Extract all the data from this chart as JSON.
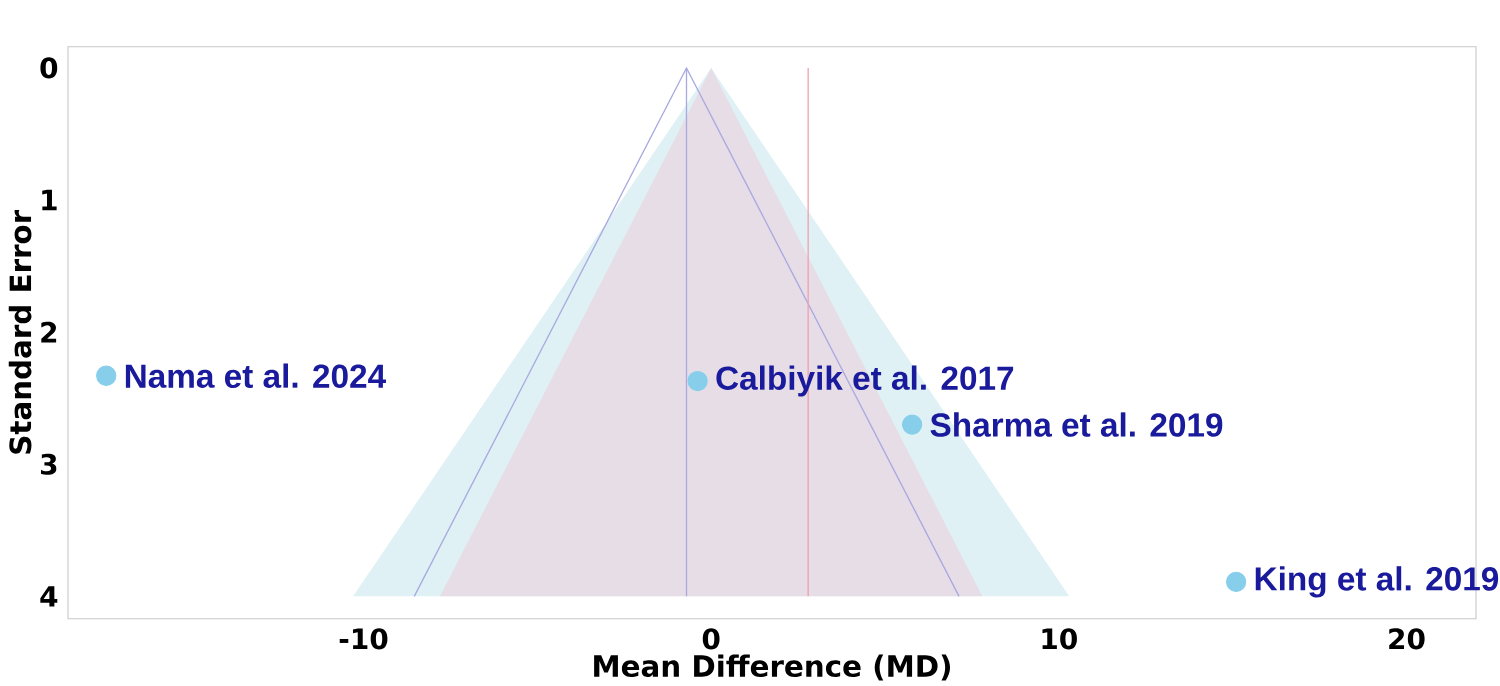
{
  "chart_data": {
    "type": "scatter",
    "xlabel": "Mean Difference (MD)",
    "ylabel": "Standard Error",
    "xlim": [
      -18.5,
      22
    ],
    "ylim": [
      4.17,
      -0.16
    ],
    "xticks": [
      -10,
      0,
      10,
      20
    ],
    "yticks": [
      0,
      1,
      2,
      3,
      4
    ],
    "grid": false,
    "series": [
      {
        "type": "area",
        "color": "#dff1f5",
        "x": [
          -10.3,
          0,
          10.3
        ],
        "values": [
          4,
          0,
          4
        ]
      },
      {
        "type": "area",
        "color": "#e6dde7",
        "x": [
          -7.8,
          0,
          7.8
        ],
        "values": [
          4,
          0,
          4
        ]
      },
      {
        "type": "line",
        "color": "#a9a9e0",
        "x": [
          -8.54,
          -0.71,
          7.13
        ],
        "values": [
          4,
          0,
          4
        ]
      },
      {
        "color": "#87ceeb",
        "x": [
          -17.4,
          -0.39,
          5.78,
          15.1
        ],
        "values": [
          2.33,
          2.37,
          2.7,
          3.89
        ]
      }
    ],
    "ref_lines": [
      {
        "axis": "x",
        "value": -0.71,
        "color": "#a9a9e0"
      },
      {
        "axis": "x",
        "value": 2.79,
        "color": "#f2a0b0"
      }
    ],
    "annotations": [
      {
        "text": "Nama et al. 2024",
        "x": -17.4,
        "y": 2.33
      },
      {
        "text": "Calbiyik et al. 2017",
        "x": -0.39,
        "y": 2.37
      },
      {
        "text": "Sharma et al. 2019",
        "x": 5.78,
        "y": 2.7
      },
      {
        "text": "King et al. 2019",
        "x": 15.1,
        "y": 3.89
      }
    ]
  }
}
